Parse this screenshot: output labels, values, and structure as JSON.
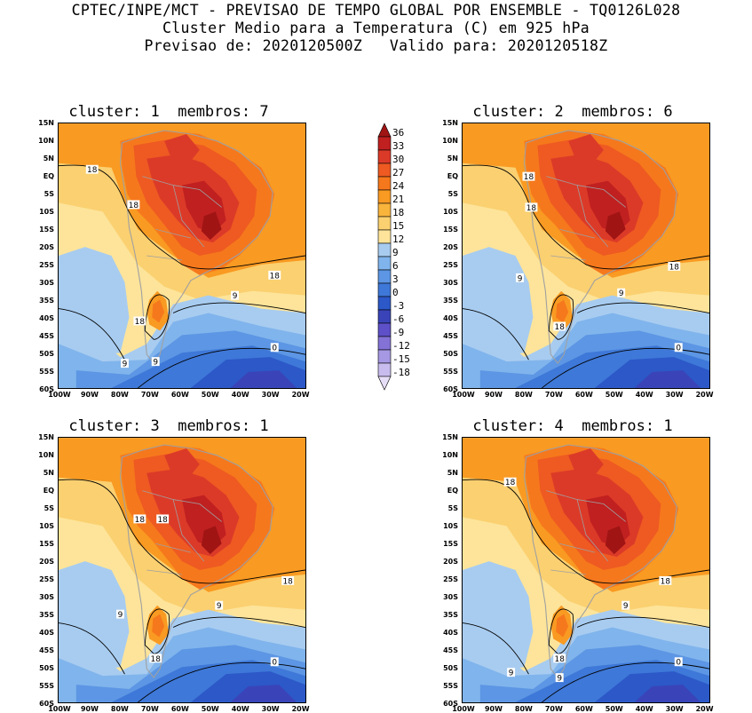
{
  "header": {
    "line1": "CPTEC/INPE/MCT - PREVISAO DE TEMPO GLOBAL POR ENSEMBLE - TQ0126L028",
    "line2": "Cluster Medio para a Temperatura (C) em 925 hPa",
    "line3": "Previsao de: 2020120500Z   Valido para: 2020120518Z"
  },
  "panels": [
    {
      "title": "cluster: 1  membros: 7",
      "contour_labels": [
        "18",
        "18",
        "18",
        "18",
        "9",
        "9",
        "9",
        "0"
      ]
    },
    {
      "title": "cluster: 2  membros: 6",
      "contour_labels": [
        "18",
        "18",
        "18",
        "18",
        "9",
        "9",
        "0"
      ]
    },
    {
      "title": "cluster: 3  membros: 1",
      "contour_labels": [
        "18",
        "18",
        "18",
        "18",
        "9",
        "9",
        "0"
      ]
    },
    {
      "title": "cluster: 4  membros: 1",
      "contour_labels": [
        "18",
        "18",
        "18",
        "9",
        "9",
        "9",
        "0"
      ]
    }
  ],
  "lat_ticks": [
    "15N",
    "10N",
    "5N",
    "EQ",
    "5S",
    "10S",
    "15S",
    "20S",
    "25S",
    "30S",
    "35S",
    "40S",
    "45S",
    "50S",
    "55S",
    "60S"
  ],
  "lon_ticks": [
    "100W",
    "90W",
    "80W",
    "70W",
    "60W",
    "50W",
    "40W",
    "30W",
    "20W"
  ],
  "colorbar": {
    "labels": [
      "36",
      "33",
      "30",
      "27",
      "24",
      "21",
      "18",
      "15",
      "12",
      "9",
      "6",
      "3",
      "0",
      "-3",
      "-6",
      "-9",
      "-12",
      "-15",
      "-18"
    ],
    "colors": [
      "#a01414",
      "#c02020",
      "#dc3a28",
      "#ee5a22",
      "#f6781c",
      "#f99a22",
      "#f9b43c",
      "#fbd070",
      "#fde49a",
      "#a8ccf0",
      "#80b4ec",
      "#5c96e4",
      "#3e78d8",
      "#2c58c8",
      "#3a44b8",
      "#5e50c8",
      "#8472d6",
      "#a698e2",
      "#c8bcee",
      "#e6ddf6"
    ]
  }
}
